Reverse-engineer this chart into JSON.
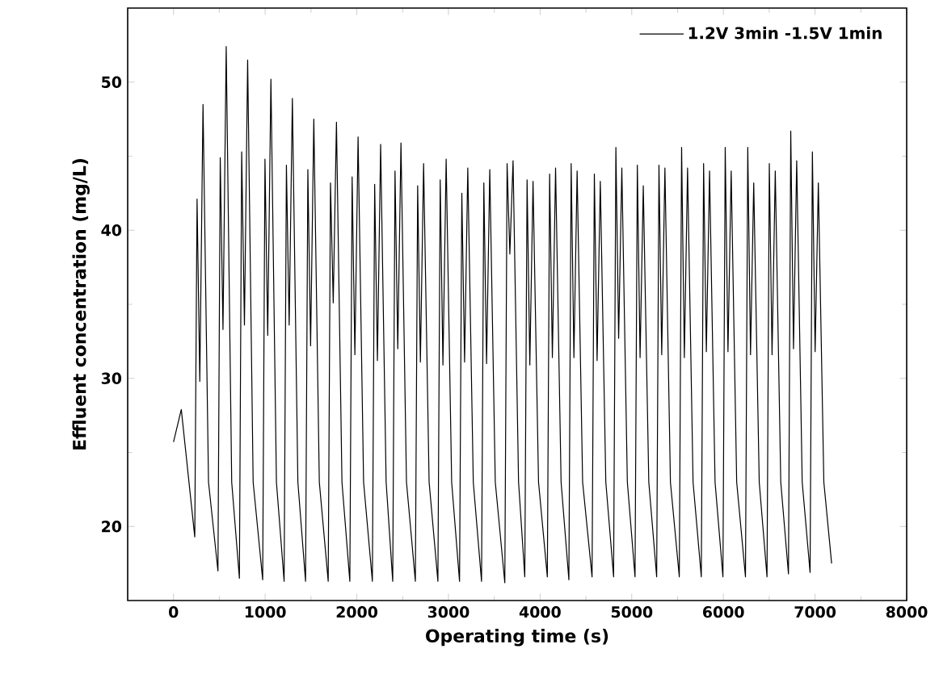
{
  "chart_data": {
    "type": "line",
    "xlabel": "Operating time (s)",
    "ylabel": "Effluent concentration (mg/L)",
    "xlim": [
      -500,
      8000
    ],
    "xticks": [
      0,
      1000,
      2000,
      3000,
      4000,
      5000,
      6000,
      7000,
      8000
    ],
    "ylim": [
      15,
      55
    ],
    "yticks": [
      20,
      30,
      40,
      50
    ],
    "legend": "top right",
    "x": [
      0,
      85,
      232,
      257,
      287,
      322,
      382,
      485,
      510,
      540,
      575,
      635,
      719,
      744,
      774,
      809,
      869,
      973,
      998,
      1028,
      1063,
      1123,
      1207,
      1232,
      1262,
      1297,
      1357,
      1441,
      1466,
      1496,
      1531,
      1591,
      1688,
      1713,
      1743,
      1778,
      1838,
      1924,
      1949,
      1979,
      2014,
      2074,
      2170,
      2195,
      2225,
      2260,
      2320,
      2392,
      2417,
      2447,
      2482,
      2542,
      2639,
      2664,
      2694,
      2729,
      2789,
      2885,
      2910,
      2940,
      2975,
      3035,
      3121,
      3146,
      3176,
      3211,
      3271,
      3361,
      3386,
      3416,
      3451,
      3511,
      3615,
      3640,
      3670,
      3705,
      3765,
      3833,
      3858,
      3888,
      3923,
      3983,
      4079,
      4104,
      4134,
      4169,
      4229,
      4314,
      4339,
      4369,
      4404,
      4464,
      4567,
      4592,
      4622,
      4657,
      4717,
      4802,
      4827,
      4857,
      4892,
      4952,
      5036,
      5061,
      5091,
      5126,
      5186,
      5272,
      5297,
      5327,
      5362,
      5422,
      5519,
      5544,
      5574,
      5609,
      5669,
      5759,
      5784,
      5814,
      5849,
      5909,
      5995,
      6020,
      6050,
      6085,
      6145,
      6241,
      6266,
      6296,
      6331,
      6391,
      6476,
      6501,
      6531,
      6566,
      6626,
      6710,
      6735,
      6765,
      6800,
      6860,
      6946,
      6971,
      7001,
      7036,
      7096,
      7181
    ],
    "series": [
      {
        "name": "1.2V 3min -1.5V 1min",
        "color": "#000000",
        "values": [
          25.7,
          27.9,
          19.3,
          42.1,
          29.8,
          48.5,
          23,
          17.0,
          44.9,
          33.3,
          52.4,
          23,
          16.5,
          45.3,
          33.6,
          51.5,
          23,
          16.4,
          44.8,
          32.9,
          50.2,
          23,
          16.3,
          44.4,
          33.6,
          48.9,
          23,
          16.3,
          44.1,
          32.2,
          47.5,
          23,
          16.3,
          43.2,
          35.1,
          47.3,
          23,
          16.3,
          43.6,
          31.6,
          46.3,
          23,
          16.3,
          43.1,
          31.2,
          45.8,
          23,
          16.3,
          44.0,
          32.0,
          45.9,
          23,
          16.3,
          43.0,
          31.1,
          44.5,
          23,
          16.3,
          43.4,
          30.9,
          44.8,
          23,
          16.3,
          42.5,
          31.1,
          44.2,
          23,
          16.3,
          43.2,
          31.0,
          44.1,
          23,
          16.2,
          44.5,
          38.4,
          44.7,
          23,
          16.6,
          43.4,
          30.9,
          43.3,
          23,
          16.6,
          43.8,
          31.4,
          44.2,
          23,
          16.4,
          44.5,
          31.4,
          44.0,
          23,
          16.6,
          43.8,
          31.2,
          43.3,
          23,
          16.6,
          45.6,
          32.7,
          44.2,
          23,
          16.6,
          44.4,
          31.4,
          43.0,
          23,
          16.6,
          44.4,
          31.6,
          44.2,
          23,
          16.6,
          45.6,
          31.4,
          44.2,
          23,
          16.6,
          44.5,
          31.8,
          44.0,
          23,
          16.6,
          45.6,
          31.8,
          44.0,
          23,
          16.6,
          45.6,
          31.6,
          43.2,
          23,
          16.6,
          44.5,
          31.6,
          44.0,
          23,
          16.8,
          46.7,
          32.0,
          44.7,
          23,
          16.9,
          45.3,
          31.8,
          43.2,
          23,
          17.5
        ]
      }
    ]
  }
}
